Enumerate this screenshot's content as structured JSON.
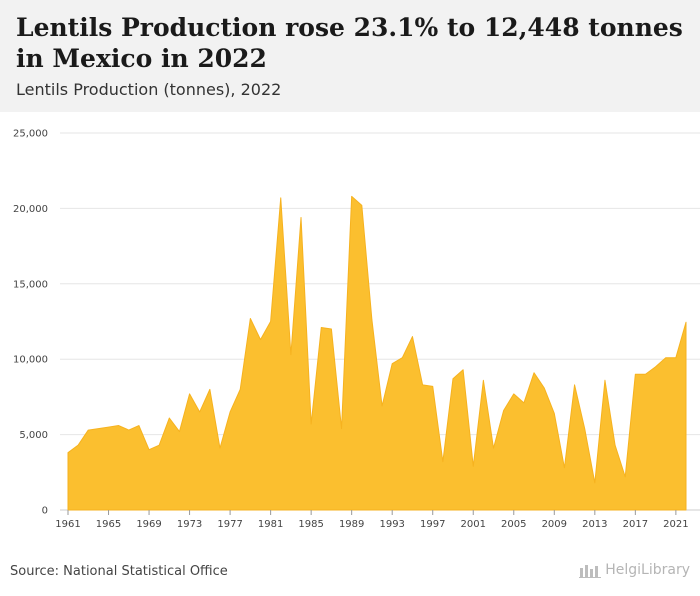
{
  "header": {
    "title": "Lentils Production rose 23.1% to 12,448 tonnes in Mexico in 2022",
    "subtitle": "Lentils Production (tonnes), 2022"
  },
  "footer": {
    "source": "Source: National Statistical Office",
    "brand": "HelgiLibrary"
  },
  "colors": {
    "area_fill": "#fbbf2f",
    "area_stroke": "#f6b21f",
    "grid": "#e6e6e6",
    "header_bg": "#f2f2f2"
  },
  "chart_data": {
    "type": "area",
    "title": "Lentils Production rose 23.1% to 12,448 tonnes in Mexico in 2022",
    "subtitle": "Lentils Production (tonnes), 2022",
    "xlabel": "",
    "ylabel": "",
    "ylim": [
      0,
      25000
    ],
    "yticks": [
      0,
      5000,
      10000,
      15000,
      20000,
      25000
    ],
    "ytick_labels": [
      "0",
      "5,000",
      "10,000",
      "15,000",
      "20,000",
      "25,000"
    ],
    "xticks": [
      1961,
      1965,
      1969,
      1973,
      1977,
      1981,
      1985,
      1989,
      1993,
      1997,
      2001,
      2005,
      2009,
      2013,
      2017,
      2021
    ],
    "grid": true,
    "legend": "none",
    "x": [
      1961,
      1962,
      1963,
      1964,
      1965,
      1966,
      1967,
      1968,
      1969,
      1970,
      1971,
      1972,
      1973,
      1974,
      1975,
      1976,
      1977,
      1978,
      1979,
      1980,
      1981,
      1982,
      1983,
      1984,
      1985,
      1986,
      1987,
      1988,
      1989,
      1990,
      1991,
      1992,
      1993,
      1994,
      1995,
      1996,
      1997,
      1998,
      1999,
      2000,
      2001,
      2002,
      2003,
      2004,
      2005,
      2006,
      2007,
      2008,
      2009,
      2010,
      2011,
      2012,
      2013,
      2014,
      2015,
      2016,
      2017,
      2018,
      2019,
      2020,
      2021,
      2022
    ],
    "series": [
      {
        "values": [
          3800,
          4300,
          5300,
          5400,
          5500,
          5600,
          5300,
          5600,
          4000,
          4300,
          6100,
          5200,
          7700,
          6500,
          8000,
          4100,
          6500,
          8000,
          12700,
          11300,
          12500,
          20700,
          10300,
          19400,
          5700,
          12100,
          12000,
          5400,
          20800,
          20200,
          12600,
          6900,
          9700,
          10100,
          11500,
          8300,
          8200,
          3200,
          8700,
          9300,
          2900,
          8600,
          4100,
          6600,
          7700,
          7100,
          9100,
          8100,
          6400,
          2800,
          8300,
          5400,
          1800,
          8600,
          4300,
          2200,
          9000,
          9000,
          9500,
          10100,
          10100,
          12448
        ]
      }
    ]
  }
}
